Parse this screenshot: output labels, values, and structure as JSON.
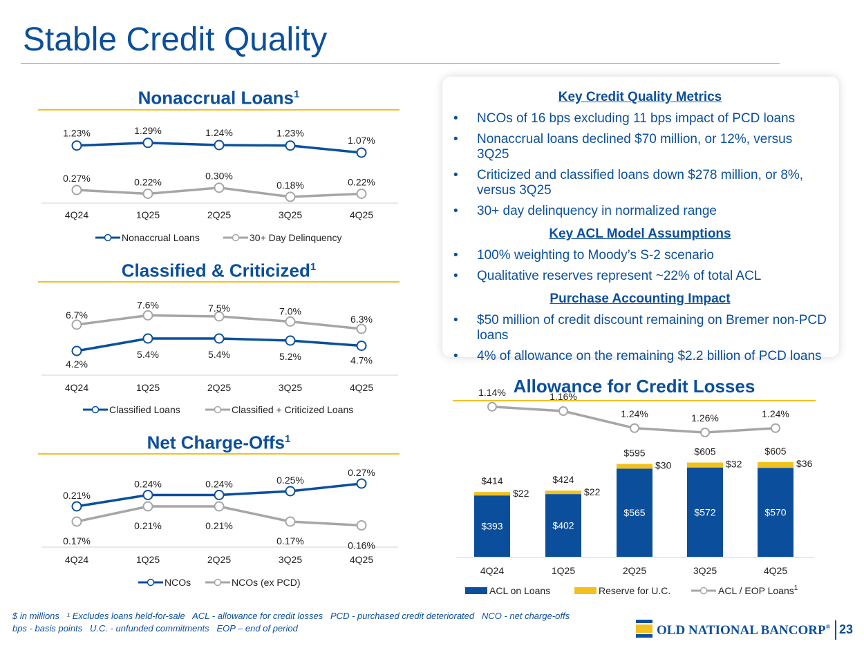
{
  "page": {
    "title": "Stable Credit Quality",
    "page_number": "23",
    "footnote_line1": "$ in millions   ¹ Excludes loans held-for-sale   ACL - allowance for credit losses   PCD - purchased credit deteriorated   NCO - net charge-offs",
    "footnote_line2": "bps - basis points   U.C. - unfunded commitments   EOP – end of period",
    "logo_text": "OLD NATIONAL BANCORP",
    "logo_mark": "®"
  },
  "colors": {
    "brand_blue": "#0b4f9c",
    "gray_series": "#a6a6a6",
    "gold": "#f2c11f"
  },
  "metrics": {
    "heading1": "Key Credit Quality Metrics",
    "bullets1": [
      "NCOs of 16 bps excluding 11 bps impact of PCD loans",
      "Nonaccrual loans declined $70 million, or 12%, versus 3Q25",
      "Criticized and classified loans down $278 million, or 8%, versus 3Q25",
      "30+ day delinquency in normalized range"
    ],
    "heading2": "Key ACL Model Assumptions",
    "bullets2": [
      "100% weighting to Moody’s S-2 scenario",
      "Qualitative reserves represent ~22% of total ACL"
    ],
    "heading3": "Purchase Accounting Impact",
    "bullets3": [
      "$50 million of credit discount remaining on Bremer non-PCD loans",
      "4% of allowance on the remaining $2.2 billion of PCD loans"
    ],
    "bullet_char": "•"
  },
  "chart_data": [
    {
      "type": "line",
      "title": "Nonaccrual Loans",
      "title_sup": "1",
      "categories": [
        "4Q24",
        "1Q25",
        "2Q25",
        "3Q25",
        "4Q25"
      ],
      "series": [
        {
          "name": "Nonaccrual Loans",
          "values": [
            1.23,
            1.29,
            1.24,
            1.23,
            1.07
          ],
          "labels": [
            "1.23%",
            "1.29%",
            "1.24%",
            "1.23%",
            "1.07%"
          ],
          "color": "#0b4f9c"
        },
        {
          "name": "30+ Day Delinquency",
          "values": [
            0.27,
            0.22,
            0.3,
            0.18,
            0.22
          ],
          "labels": [
            "0.27%",
            "0.22%",
            "0.30%",
            "0.18%",
            "0.22%"
          ],
          "color": "#a6a6a6"
        }
      ],
      "legend": "bottom"
    },
    {
      "type": "line",
      "title": "Classified & Criticized",
      "title_sup": "1",
      "categories": [
        "4Q24",
        "1Q25",
        "2Q25",
        "3Q25",
        "4Q25"
      ],
      "series": [
        {
          "name": "Classified Loans",
          "values": [
            4.2,
            5.4,
            5.4,
            5.2,
            4.7
          ],
          "labels": [
            "4.2%",
            "5.4%",
            "5.4%",
            "5.2%",
            "4.7%"
          ],
          "color": "#0b4f9c"
        },
        {
          "name": "Classified + Criticized Loans",
          "values": [
            6.7,
            7.6,
            7.5,
            7.0,
            6.3
          ],
          "labels": [
            "6.7%",
            "7.6%",
            "7.5%",
            "7.0%",
            "6.3%"
          ],
          "color": "#a6a6a6"
        }
      ],
      "legend": "bottom"
    },
    {
      "type": "line",
      "title": "Net Charge-Offs",
      "title_sup": "1",
      "categories": [
        "4Q24",
        "1Q25",
        "2Q25",
        "3Q25",
        "4Q25"
      ],
      "series": [
        {
          "name": "NCOs",
          "values": [
            0.21,
            0.24,
            0.24,
            0.25,
            0.27
          ],
          "labels": [
            "0.21%",
            "0.24%",
            "0.24%",
            "0.25%",
            "0.27%"
          ],
          "color": "#0b4f9c"
        },
        {
          "name": "NCOs (ex PCD)",
          "values": [
            0.17,
            0.21,
            0.21,
            0.17,
            0.16
          ],
          "labels": [
            "0.17%",
            "0.21%",
            "0.21%",
            "0.17%",
            "0.16%"
          ],
          "color": "#a6a6a6"
        }
      ],
      "legend": "bottom"
    },
    {
      "type": "bar",
      "stacked": true,
      "title": "Allowance for Credit Losses",
      "categories": [
        "4Q24",
        "1Q25",
        "2Q25",
        "3Q25",
        "4Q25"
      ],
      "series": [
        {
          "name": "ACL on Loans",
          "values": [
            393,
            402,
            565,
            572,
            570
          ],
          "labels": [
            "$393",
            "$402",
            "$565",
            "$572",
            "$570"
          ],
          "color": "#0b4f9c"
        },
        {
          "name": "Reserve for U.C.",
          "values": [
            22,
            22,
            30,
            32,
            36
          ],
          "labels": [
            "$22",
            "$22",
            "$30",
            "$32",
            "$36"
          ],
          "color": "#f2c11f"
        }
      ],
      "totals": [
        "$414",
        "$424",
        "$595",
        "$605",
        "$605"
      ],
      "line_series": {
        "name": "ACL / EOP Loans",
        "name_sup": "1",
        "values": [
          1.14,
          1.16,
          1.24,
          1.26,
          1.24
        ],
        "labels": [
          "1.14%",
          "1.16%",
          "1.24%",
          "1.26%",
          "1.24%"
        ],
        "color": "#a6a6a6"
      },
      "legend": "bottom"
    }
  ]
}
